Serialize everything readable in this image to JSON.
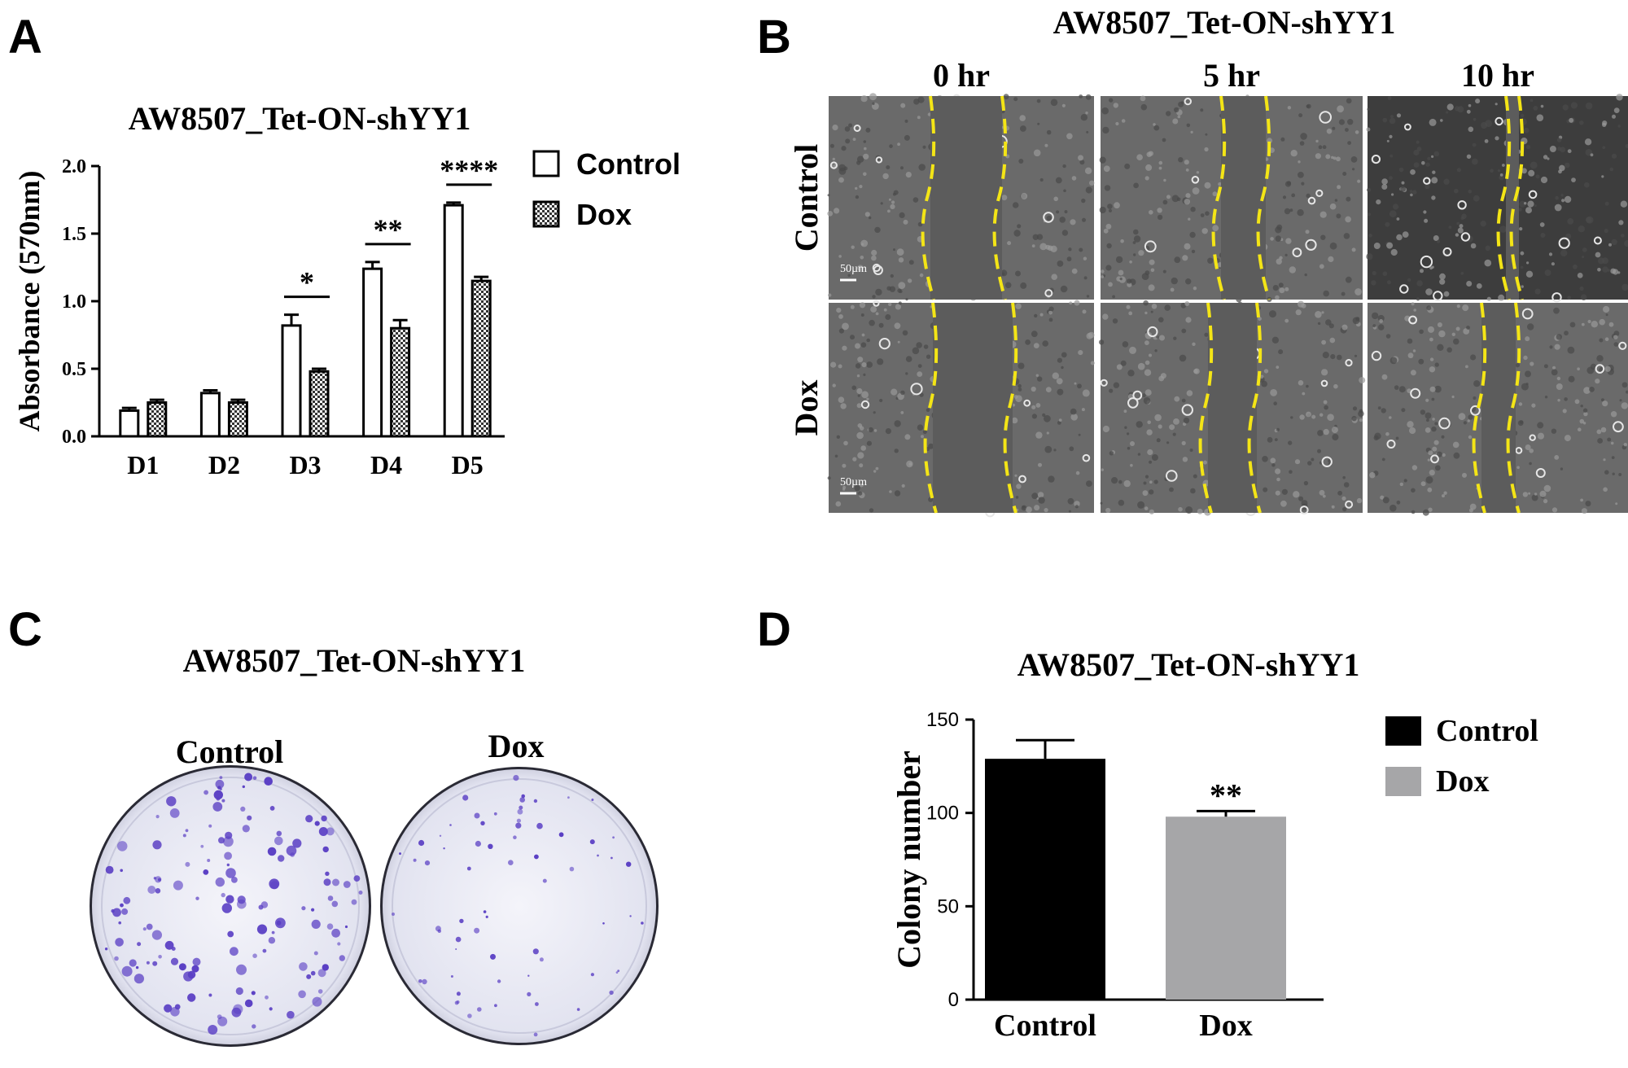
{
  "panels": {
    "A": {
      "letter": "A",
      "title": "AW8507_Tet-ON-shYY1"
    },
    "B": {
      "letter": "B",
      "title": "AW8507_Tet-ON-shYY1",
      "columns": [
        "0 hr",
        "5 hr",
        "10 hr"
      ],
      "rows": [
        "Control",
        "Dox"
      ],
      "scale_bar": "50µm"
    },
    "C": {
      "letter": "C",
      "title": "AW8507_Tet-ON-shYY1",
      "plates": [
        "Control",
        "Dox"
      ]
    },
    "D": {
      "letter": "D",
      "title": "AW8507_Tet-ON-shYY1"
    }
  },
  "colors": {
    "control_D": "#000000",
    "dox_D": "#a6a6a8",
    "guide_line": "#f4e516",
    "stain": "#5a3fc4"
  },
  "chart_data": [
    {
      "id": "A",
      "type": "bar",
      "title": "AW8507_Tet-ON-shYY1",
      "xlabel": "",
      "ylabel": "Absorbance (570nm)",
      "ylim": [
        0,
        2.0
      ],
      "yticks": [
        "0.0",
        "0.5",
        "1.0",
        "1.5",
        "2.0"
      ],
      "categories": [
        "D1",
        "D2",
        "D3",
        "D4",
        "D5"
      ],
      "series": [
        {
          "name": "Control",
          "values": [
            0.19,
            0.32,
            0.82,
            1.24,
            1.71
          ],
          "errors": [
            0.02,
            0.02,
            0.08,
            0.05,
            0.02
          ]
        },
        {
          "name": "Dox",
          "values": [
            0.25,
            0.25,
            0.48,
            0.8,
            1.15
          ],
          "errors": [
            0.02,
            0.02,
            0.02,
            0.06,
            0.03
          ]
        }
      ],
      "significance": [
        {
          "category": "D3",
          "label": "*"
        },
        {
          "category": "D4",
          "label": "**"
        },
        {
          "category": "D5",
          "label": "****"
        }
      ],
      "legend": "top-right"
    },
    {
      "id": "D",
      "type": "bar",
      "title": "AW8507_Tet-ON-shYY1",
      "xlabel": "",
      "ylabel": "Colony number",
      "ylim": [
        0,
        150
      ],
      "yticks": [
        "0",
        "50",
        "100",
        "150"
      ],
      "categories": [
        "Control",
        "Dox"
      ],
      "values": [
        129,
        98
      ],
      "errors": [
        10,
        3
      ],
      "legend_entries": [
        "Control",
        "Dox"
      ],
      "significance": [
        {
          "category": "Dox",
          "label": "**"
        }
      ],
      "legend": "top-right"
    }
  ]
}
